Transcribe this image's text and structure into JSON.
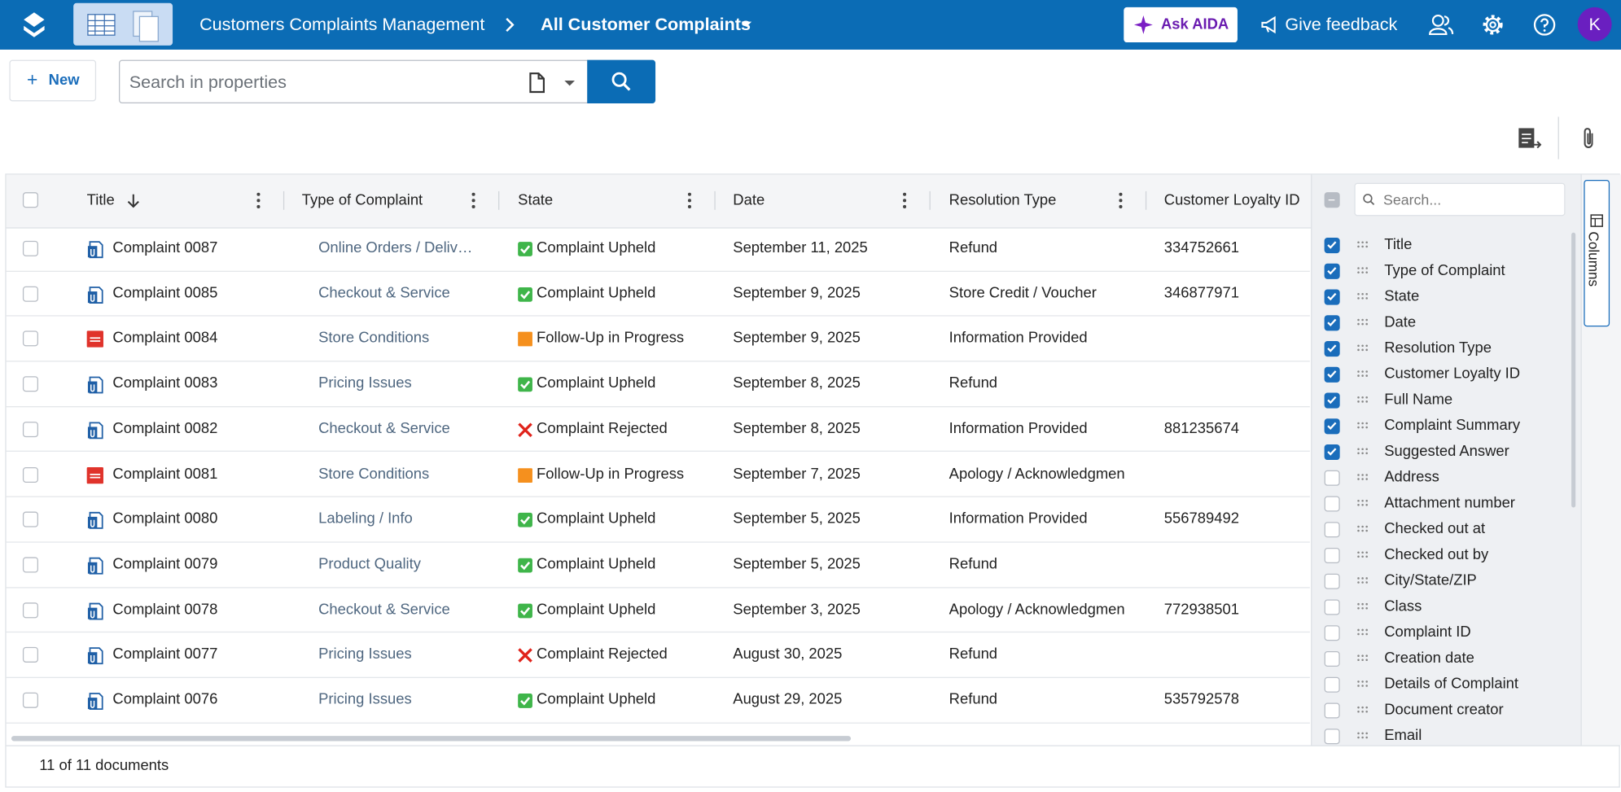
{
  "header": {
    "app": "Customers Complaints Management",
    "view": "All Customer Complaints",
    "ask": "Ask AIDA",
    "feedback": "Give feedback",
    "avatar": "K"
  },
  "toolbar": {
    "new": "New",
    "search_placeholder": "Search in properties"
  },
  "table": {
    "columns": [
      "Title",
      "Type of Complaint",
      "State",
      "Date",
      "Resolution Type",
      "Customer Loyalty ID"
    ],
    "rows": [
      {
        "icon": "doc",
        "title": "Complaint 0087",
        "type": "Online Orders / Deliv…",
        "state_icon": "upheld",
        "state": "Complaint Upheld",
        "date": "September 11, 2025",
        "resolution": "Refund",
        "loyalty": "334752661"
      },
      {
        "icon": "doc",
        "title": "Complaint 0085",
        "type": "Checkout & Service",
        "state_icon": "upheld",
        "state": "Complaint Upheld",
        "date": "September 9, 2025",
        "resolution": "Store Credit / Voucher",
        "loyalty": "346877971"
      },
      {
        "icon": "pdf",
        "title": "Complaint 0084",
        "type": "Store Conditions",
        "state_icon": "progress",
        "state": "Follow-Up in Progress",
        "date": "September 9, 2025",
        "resolution": "Information Provided",
        "loyalty": null
      },
      {
        "icon": "doc",
        "title": "Complaint 0083",
        "type": "Pricing Issues",
        "state_icon": "upheld",
        "state": "Complaint Upheld",
        "date": "September 8, 2025",
        "resolution": "Refund",
        "loyalty": null
      },
      {
        "icon": "doc",
        "title": "Complaint 0082",
        "type": "Checkout & Service",
        "state_icon": "rejected",
        "state": "Complaint Rejected",
        "date": "September 8, 2025",
        "resolution": "Information Provided",
        "loyalty": "881235674"
      },
      {
        "icon": "pdf",
        "title": "Complaint 0081",
        "type": "Store Conditions",
        "state_icon": "progress",
        "state": "Follow-Up in Progress",
        "date": "September 7, 2025",
        "resolution": "Apology / Acknowledgmen",
        "loyalty": null
      },
      {
        "icon": "doc",
        "title": "Complaint 0080",
        "type": "Labeling / Info",
        "state_icon": "upheld",
        "state": "Complaint Upheld",
        "date": "September 5, 2025",
        "resolution": "Information Provided",
        "loyalty": "556789492"
      },
      {
        "icon": "doc",
        "title": "Complaint 0079",
        "type": "Product Quality",
        "state_icon": "upheld",
        "state": "Complaint Upheld",
        "date": "September 5, 2025",
        "resolution": "Refund",
        "loyalty": null
      },
      {
        "icon": "doc",
        "title": "Complaint 0078",
        "type": "Checkout & Service",
        "state_icon": "upheld",
        "state": "Complaint Upheld",
        "date": "September 3, 2025",
        "resolution": "Apology / Acknowledgmen",
        "loyalty": "772938501"
      },
      {
        "icon": "doc",
        "title": "Complaint 0077",
        "type": "Pricing Issues",
        "state_icon": "rejected",
        "state": "Complaint Rejected",
        "date": "August 30, 2025",
        "resolution": "Refund",
        "loyalty": null
      },
      {
        "icon": "doc",
        "title": "Complaint 0076",
        "type": "Pricing Issues",
        "state_icon": "upheld",
        "state": "Complaint Upheld",
        "date": "August 29, 2025",
        "resolution": "Refund",
        "loyalty": "535792578"
      }
    ],
    "footer": "11 of 11 documents"
  },
  "columns_panel": {
    "search_placeholder": "Search...",
    "tab": "Columns",
    "items": [
      {
        "label": "Title",
        "checked": true
      },
      {
        "label": "Type of Complaint",
        "checked": true
      },
      {
        "label": "State",
        "checked": true
      },
      {
        "label": "Date",
        "checked": true
      },
      {
        "label": "Resolution Type",
        "checked": true
      },
      {
        "label": "Customer Loyalty ID",
        "checked": true
      },
      {
        "label": "Full Name",
        "checked": true
      },
      {
        "label": "Complaint Summary",
        "checked": true
      },
      {
        "label": "Suggested Answer",
        "checked": true
      },
      {
        "label": "Address",
        "checked": false
      },
      {
        "label": "Attachment number",
        "checked": false
      },
      {
        "label": "Checked out at",
        "checked": false
      },
      {
        "label": "Checked out by",
        "checked": false
      },
      {
        "label": "City/State/ZIP",
        "checked": false
      },
      {
        "label": "Class",
        "checked": false
      },
      {
        "label": "Complaint ID",
        "checked": false
      },
      {
        "label": "Creation date",
        "checked": false
      },
      {
        "label": "Details of Complaint",
        "checked": false
      },
      {
        "label": "Document creator",
        "checked": false
      },
      {
        "label": "Email",
        "checked": false
      }
    ]
  }
}
